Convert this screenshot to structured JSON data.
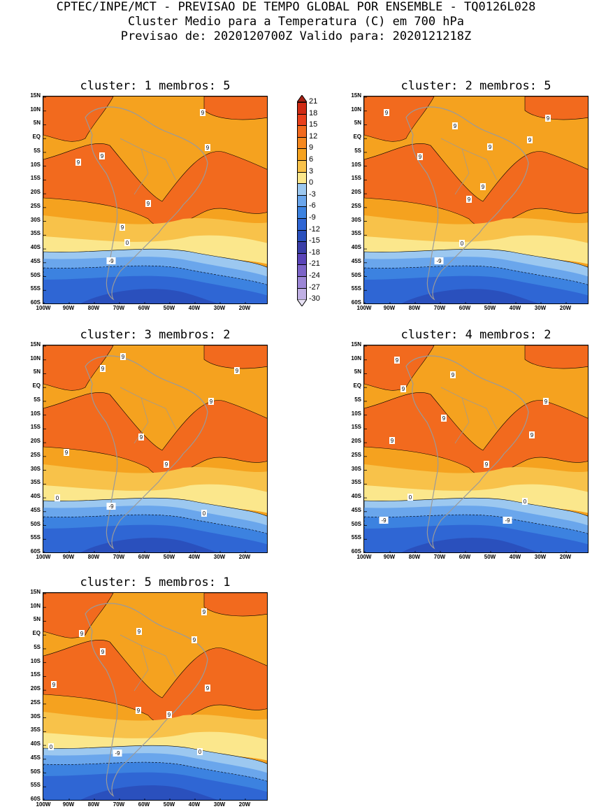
{
  "header": {
    "line1": "CPTEC/INPE/MCT - PREVISAO DE TEMPO GLOBAL POR ENSEMBLE - TQ0126L028",
    "line2": "Cluster Medio para a Temperatura (C) em 700 hPa",
    "line3": "Previsao de: 2020120700Z   Valido para: 2020121218Z"
  },
  "panels": [
    {
      "title": "cluster: 1   membros: 5",
      "labels": [
        "9",
        "9",
        "9",
        "9",
        "9",
        "9",
        "0",
        "-9"
      ]
    },
    {
      "title": "cluster: 2   membros: 5",
      "labels": [
        "9",
        "9",
        "9",
        "9",
        "9",
        "9",
        "9",
        "9",
        "0",
        "-9"
      ]
    },
    {
      "title": "cluster: 3   membros: 2",
      "labels": [
        "9",
        "9",
        "9",
        "9",
        "9",
        "9",
        "9",
        "0",
        "0",
        "-9"
      ]
    },
    {
      "title": "cluster: 4   membros: 2",
      "labels": [
        "9",
        "9",
        "9",
        "9",
        "9",
        "9",
        "9",
        "9",
        "0",
        "0",
        "-9",
        "-9"
      ]
    },
    {
      "title": "cluster: 5   membros: 1",
      "labels": [
        "9",
        "9",
        "9",
        "9",
        "9",
        "9",
        "9",
        "9",
        "9",
        "0",
        "0",
        "-9"
      ]
    }
  ],
  "lat_ticks": [
    "15N",
    "10N",
    "5N",
    "EQ",
    "5S",
    "10S",
    "15S",
    "20S",
    "25S",
    "30S",
    "35S",
    "40S",
    "45S",
    "50S",
    "55S",
    "60S"
  ],
  "lon_ticks": [
    "100W",
    "90W",
    "80W",
    "70W",
    "60W",
    "50W",
    "40W",
    "30W",
    "20W"
  ],
  "colorbar": {
    "labels": [
      "21",
      "18",
      "15",
      "12",
      "9",
      "6",
      "3",
      "0",
      "-3",
      "-6",
      "-9",
      "-12",
      "-15",
      "-18",
      "-21",
      "-24",
      "-27",
      "-30"
    ],
    "colors": [
      "#a52014",
      "#cf2a14",
      "#e9401c",
      "#f26a1e",
      "#f5881f",
      "#f5a21f",
      "#f8c24a",
      "#fbe78c",
      "#9cc8f0",
      "#6aa6ec",
      "#3c82e0",
      "#2f66d4",
      "#2a50bd",
      "#3a3ea8",
      "#5a44b8",
      "#7c64c8",
      "#9c86d6",
      "#c0b0e4",
      "#e8e2f4"
    ]
  }
}
